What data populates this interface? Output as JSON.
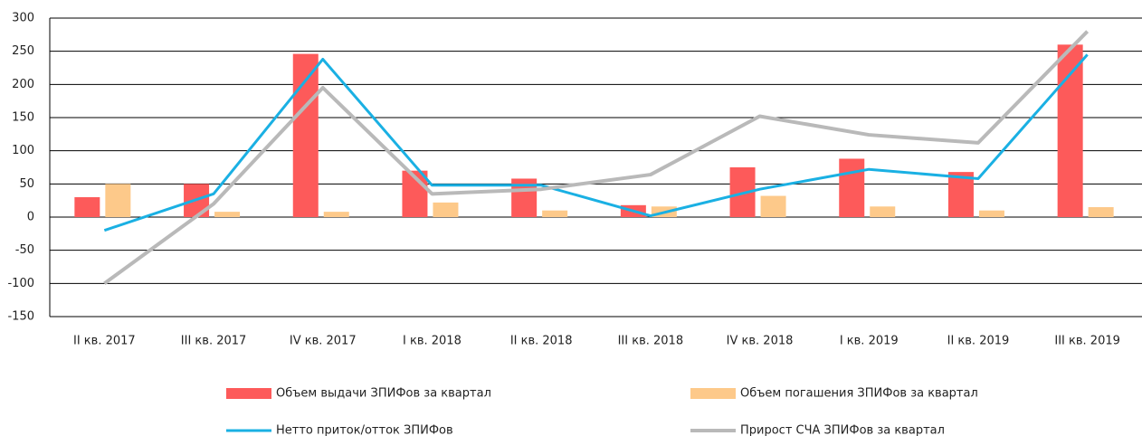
{
  "chart_data": {
    "type": "bar",
    "categories": [
      "II кв. 2017",
      "III кв. 2017",
      "IV кв. 2017",
      "I кв. 2018",
      "II кв. 2018",
      "III кв. 2018",
      "IV кв. 2018",
      "I кв. 2019",
      "II кв. 2019",
      "III кв. 2019"
    ],
    "series": [
      {
        "name": "Объем выдачи ЗПИФов за квартал",
        "type": "bar",
        "color": "#fd5a5a",
        "values": [
          30,
          50,
          246,
          70,
          58,
          18,
          75,
          88,
          68,
          260
        ]
      },
      {
        "name": "Объем погашения ЗПИФов за квартал",
        "type": "bar",
        "color": "#fdc98a",
        "values": [
          50,
          8,
          8,
          22,
          10,
          16,
          32,
          16,
          10,
          15
        ]
      },
      {
        "name": "Нетто приток/отток ЗПИФов",
        "type": "line",
        "color": "#1ab0e3",
        "values": [
          -20,
          35,
          238,
          48,
          48,
          2,
          42,
          72,
          58,
          245
        ]
      },
      {
        "name": "Прирост СЧА ЗПИФов за квартал",
        "type": "line",
        "color": "#b9b9b9",
        "values": [
          -100,
          20,
          195,
          35,
          42,
          64,
          152,
          124,
          112,
          280
        ]
      }
    ],
    "ylim": [
      -150,
      300
    ],
    "yticks": [
      -150,
      -100,
      -50,
      0,
      50,
      100,
      150,
      200,
      250,
      300
    ],
    "grid": true,
    "legend": "bottom"
  }
}
